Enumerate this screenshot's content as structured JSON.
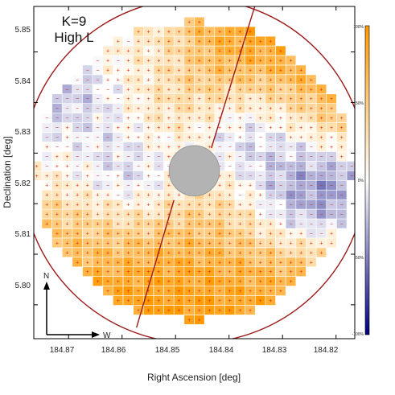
{
  "chart_data": {
    "type": "heatmap",
    "xlabel": "Right Ascension [deg]",
    "ylabel": "Declination [deg]",
    "x_ticks": [
      "184.87",
      "184.86",
      "184.85",
      "184.84",
      "184.83",
      "184.82"
    ],
    "y_ticks": [
      "5.80",
      "5.81",
      "5.82",
      "5.83",
      "5.84",
      "5.85"
    ],
    "xlim": [
      184.8765,
      184.8165
    ],
    "ylim": [
      5.7933,
      5.859
    ],
    "x_inverted": true,
    "annotation": [
      "K=9",
      "High L"
    ],
    "compass": {
      "north": "N",
      "west": "W"
    },
    "colorbar": {
      "ticks": [
        "100%",
        "50%",
        "0%",
        "-50%",
        "-100%"
      ],
      "range": [
        -100,
        100
      ],
      "colors": {
        "high": "#ff9900",
        "mid": "#ffffff",
        "low": "#000080"
      }
    },
    "sign_symbols": {
      "positive": "+",
      "negative": "−"
    },
    "overlay_color": "#9b1a1a",
    "masked_region_color": "#b3b3b3",
    "grid": {
      "nx": 34,
      "ny": 34,
      "cell_deg": 0.0019
    },
    "regions": [
      {
        "dx": -0.01,
        "dy": 0.013,
        "r": 0.009,
        "value": 70
      },
      {
        "dx": 0.006,
        "dy": 0.02,
        "r": 0.01,
        "value": 95
      },
      {
        "dx": 0.016,
        "dy": 0.012,
        "r": 0.009,
        "value": 85
      },
      {
        "dx": -0.003,
        "dy": -0.014,
        "r": 0.011,
        "value": 95
      },
      {
        "dx": 0.006,
        "dy": -0.006,
        "r": 0.007,
        "value": 80
      },
      {
        "dx": 0.018,
        "dy": -0.018,
        "r": 0.008,
        "value": 80
      },
      {
        "dx": -0.016,
        "dy": -0.01,
        "r": 0.006,
        "value": 55
      },
      {
        "dx": -0.022,
        "dy": 0.006,
        "r": 0.006,
        "value": 35
      },
      {
        "dx": -0.019,
        "dy": 0.011,
        "r": 0.007,
        "value": -90
      },
      {
        "dx": -0.012,
        "dy": -0.002,
        "r": 0.006,
        "value": -75
      },
      {
        "dx": 0.014,
        "dy": 0.0,
        "r": 0.008,
        "value": -85
      },
      {
        "dx": 0.01,
        "dy": 0.008,
        "r": 0.006,
        "value": -80
      },
      {
        "dx": 0.02,
        "dy": -0.007,
        "r": 0.006,
        "value": -80
      },
      {
        "dx": -0.008,
        "dy": 0.022,
        "r": 0.006,
        "value": -20
      },
      {
        "dx": 0.0,
        "dy": 0.003,
        "r": 0.01,
        "value": -40
      }
    ]
  }
}
